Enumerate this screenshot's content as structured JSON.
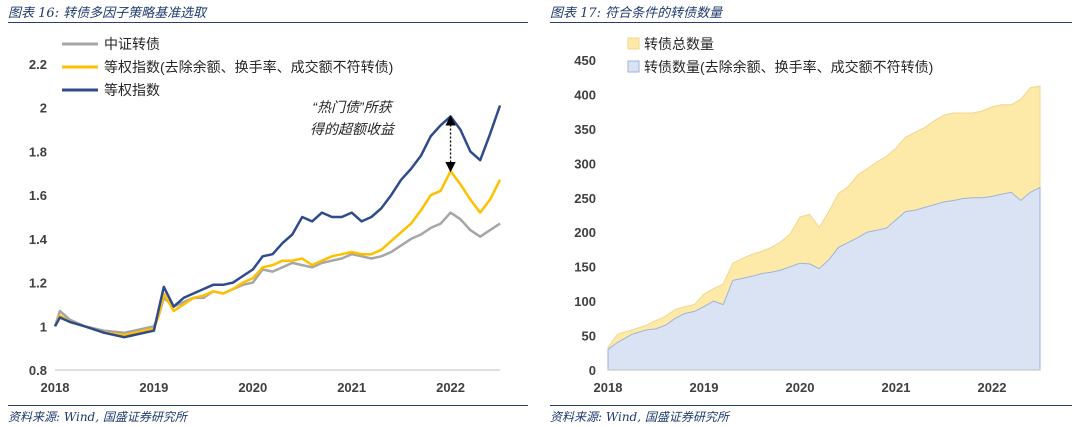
{
  "left": {
    "title": "图表 16:  转债多因子策略基准选取",
    "source": "资料来源:  Wind, 国盛证券研究所",
    "annotation": [
      "“热门债”所获",
      "得的超额收益"
    ],
    "chart_data": {
      "type": "line",
      "xlabel": "",
      "ylabel": "",
      "xlim": [
        2018,
        2022.5
      ],
      "ylim": [
        0.8,
        2.2
      ],
      "x_ticks": [
        "2018",
        "2019",
        "2020",
        "2021",
        "2022"
      ],
      "y_ticks": [
        "0.8",
        "1",
        "1.2",
        "1.4",
        "1.6",
        "1.8",
        "2",
        "2.2"
      ],
      "legend_position": "top-left",
      "x": [
        2018.0,
        2018.05,
        2018.15,
        2018.3,
        2018.5,
        2018.7,
        2018.8,
        2018.9,
        2019.0,
        2019.05,
        2019.1,
        2019.2,
        2019.3,
        2019.4,
        2019.5,
        2019.6,
        2019.7,
        2019.8,
        2019.9,
        2020.0,
        2020.1,
        2020.2,
        2020.3,
        2020.4,
        2020.5,
        2020.6,
        2020.7,
        2020.8,
        2020.9,
        2021.0,
        2021.1,
        2021.2,
        2021.3,
        2021.4,
        2021.5,
        2021.6,
        2021.7,
        2021.8,
        2021.9,
        2022.0,
        2022.1,
        2022.2,
        2022.3,
        2022.4,
        2022.5
      ],
      "series": [
        {
          "name": "中证转债",
          "color": "#a6a6a6",
          "values": [
            1.0,
            1.07,
            1.03,
            1.0,
            0.98,
            0.97,
            0.98,
            0.99,
            1.0,
            1.05,
            1.13,
            1.09,
            1.11,
            1.13,
            1.13,
            1.16,
            1.15,
            1.17,
            1.19,
            1.2,
            1.26,
            1.25,
            1.27,
            1.29,
            1.28,
            1.27,
            1.29,
            1.3,
            1.31,
            1.33,
            1.32,
            1.31,
            1.32,
            1.34,
            1.37,
            1.4,
            1.42,
            1.45,
            1.47,
            1.52,
            1.49,
            1.44,
            1.41,
            1.44,
            1.47
          ]
        },
        {
          "name": "等权指数(去除余额、换手率、成交额不符转债)",
          "color": "#ffc000",
          "values": [
            1.0,
            1.05,
            1.02,
            1.0,
            0.97,
            0.96,
            0.97,
            0.98,
            0.99,
            1.05,
            1.15,
            1.07,
            1.1,
            1.13,
            1.14,
            1.16,
            1.15,
            1.17,
            1.2,
            1.22,
            1.27,
            1.28,
            1.3,
            1.3,
            1.31,
            1.28,
            1.3,
            1.32,
            1.33,
            1.34,
            1.33,
            1.33,
            1.35,
            1.39,
            1.43,
            1.47,
            1.53,
            1.6,
            1.62,
            1.71,
            1.65,
            1.58,
            1.52,
            1.58,
            1.67
          ]
        },
        {
          "name": "等权指数",
          "color": "#2f4b8c",
          "values": [
            1.0,
            1.04,
            1.02,
            1.0,
            0.97,
            0.95,
            0.96,
            0.97,
            0.98,
            1.08,
            1.18,
            1.09,
            1.13,
            1.15,
            1.17,
            1.19,
            1.19,
            1.2,
            1.23,
            1.26,
            1.32,
            1.33,
            1.38,
            1.42,
            1.5,
            1.48,
            1.52,
            1.5,
            1.5,
            1.52,
            1.48,
            1.5,
            1.54,
            1.6,
            1.67,
            1.72,
            1.78,
            1.87,
            1.92,
            1.96,
            1.9,
            1.8,
            1.76,
            1.88,
            2.01
          ]
        }
      ]
    }
  },
  "right": {
    "title": "图表 17:  符合条件的转债数量",
    "source": "资料来源:  Wind, 国盛证券研究所",
    "chart_data": {
      "type": "area",
      "xlabel": "",
      "ylabel": "",
      "xlim": [
        2018,
        2022.5
      ],
      "ylim": [
        0,
        450
      ],
      "x_ticks": [
        "2018",
        "2019",
        "2020",
        "2021",
        "2022"
      ],
      "y_ticks": [
        "0",
        "50",
        "100",
        "150",
        "200",
        "250",
        "300",
        "350",
        "400",
        "450"
      ],
      "legend_position": "top-left",
      "x": [
        2018.0,
        2018.1,
        2018.25,
        2018.4,
        2018.5,
        2018.6,
        2018.7,
        2018.8,
        2018.9,
        2019.0,
        2019.1,
        2019.2,
        2019.3,
        2019.4,
        2019.5,
        2019.6,
        2019.7,
        2019.8,
        2019.9,
        2020.0,
        2020.1,
        2020.2,
        2020.3,
        2020.4,
        2020.5,
        2020.6,
        2020.7,
        2020.8,
        2020.9,
        2021.0,
        2021.1,
        2021.2,
        2021.3,
        2021.4,
        2021.5,
        2021.6,
        2021.7,
        2021.8,
        2021.9,
        2022.0,
        2022.1,
        2022.2,
        2022.3,
        2022.4,
        2022.5
      ],
      "series": [
        {
          "name": "转债总数量",
          "color": "#fdeaa8",
          "edge": "#f0d78c",
          "values": [
            33,
            52,
            58,
            65,
            72,
            78,
            88,
            92,
            95,
            110,
            118,
            125,
            155,
            162,
            168,
            172,
            178,
            186,
            198,
            222,
            226,
            207,
            230,
            256,
            266,
            283,
            292,
            302,
            310,
            322,
            338,
            345,
            352,
            362,
            370,
            373,
            373,
            373,
            376,
            382,
            385,
            385,
            393,
            410,
            412
          ]
        },
        {
          "name": "转债数量(去除余额、换手率、成交额不符转债)",
          "color": "#dae3f3",
          "edge": "#9fb3d9",
          "values": [
            30,
            40,
            52,
            58,
            60,
            65,
            75,
            82,
            85,
            92,
            100,
            95,
            130,
            133,
            136,
            140,
            142,
            145,
            150,
            155,
            154,
            147,
            160,
            178,
            185,
            192,
            200,
            203,
            206,
            218,
            230,
            232,
            236,
            240,
            244,
            246,
            249,
            250,
            250,
            252,
            255,
            258,
            246,
            258,
            265
          ]
        }
      ]
    }
  }
}
